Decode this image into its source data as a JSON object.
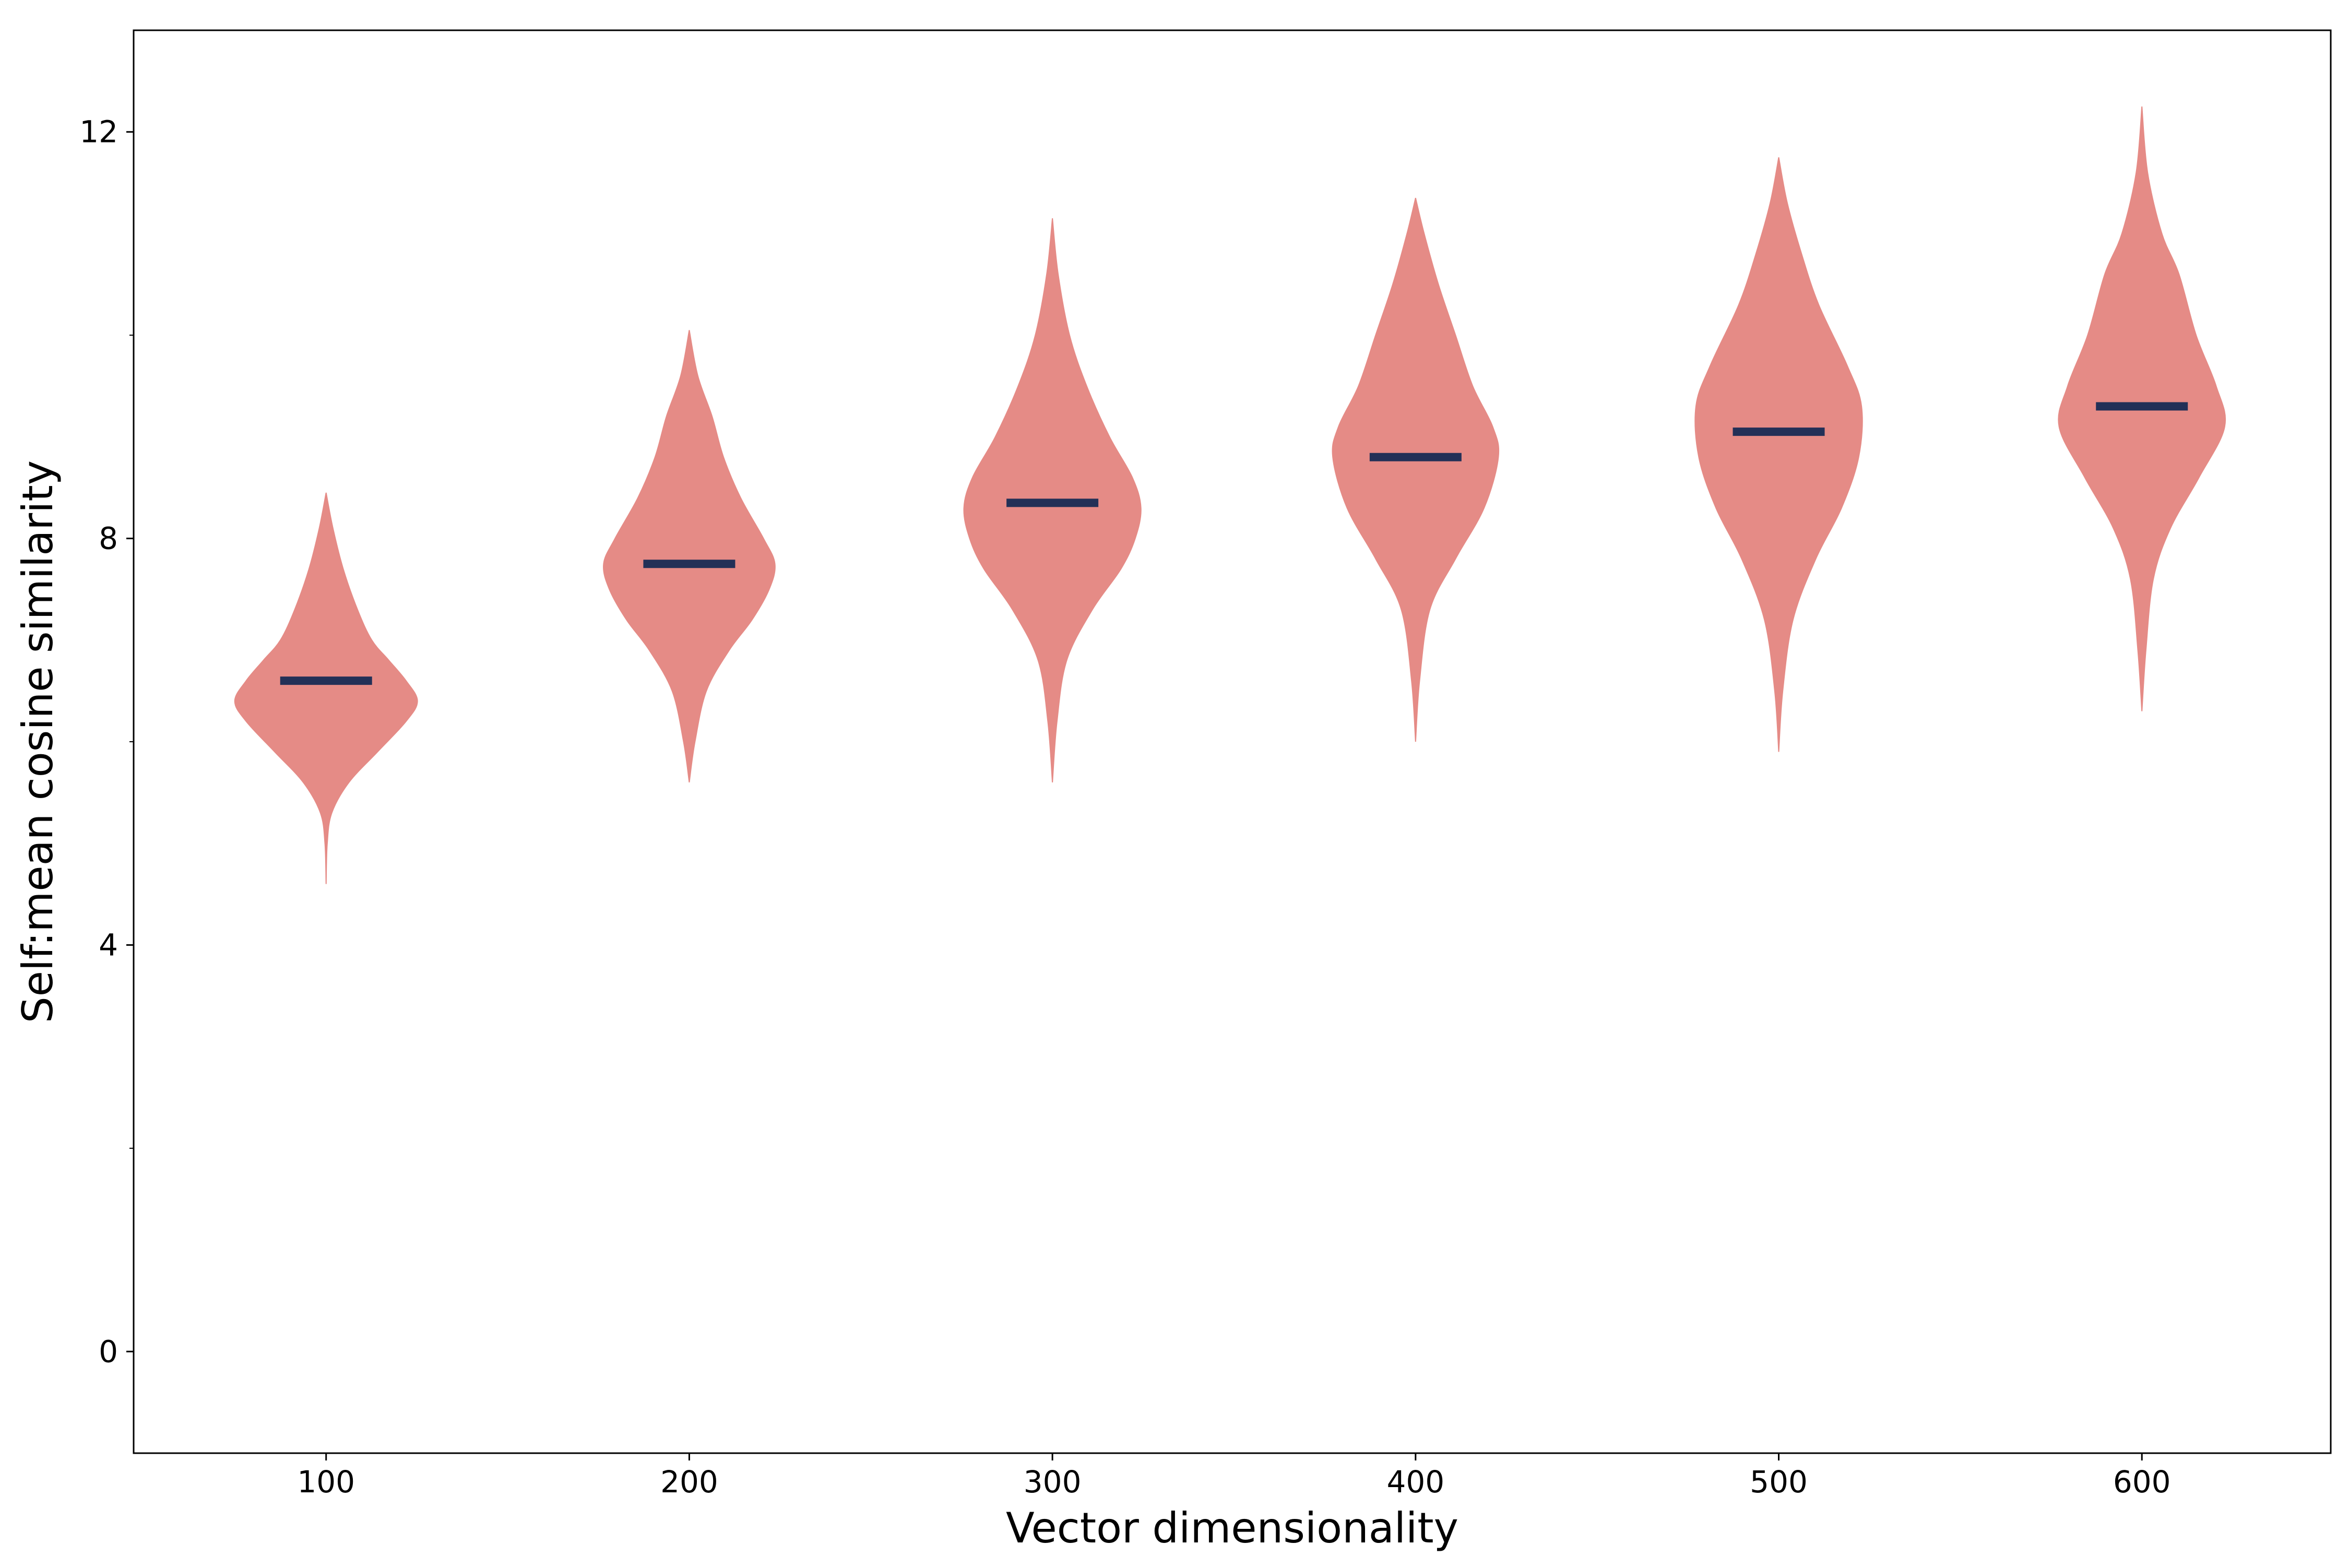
{
  "chart_data": {
    "type": "violin",
    "xlabel": "Vector dimensionality",
    "ylabel": "Self:mean cosine similarity",
    "x_ticks": [
      100,
      200,
      300,
      400,
      500,
      600
    ],
    "y_ticks": [
      0,
      4,
      8,
      12
    ],
    "y_minor_ticks": [
      2,
      6,
      10
    ],
    "xlim": [
      47,
      652
    ],
    "ylim": [
      -1,
      13
    ],
    "grid": false,
    "violin_color": "#e58b86",
    "median_color": "#233057",
    "series": [
      {
        "x": 100,
        "median": 6.6,
        "profile": [
          [
            4.6,
            0
          ],
          [
            5.0,
            0.2
          ],
          [
            5.3,
            1.0
          ],
          [
            5.6,
            4
          ],
          [
            5.9,
            9
          ],
          [
            6.2,
            14
          ],
          [
            6.4,
            16
          ],
          [
            6.6,
            14
          ],
          [
            6.8,
            11
          ],
          [
            7.0,
            8
          ],
          [
            7.3,
            5.5
          ],
          [
            7.7,
            3
          ],
          [
            8.1,
            1.2
          ],
          [
            8.45,
            0
          ]
        ]
      },
      {
        "x": 200,
        "median": 7.75,
        "profile": [
          [
            5.6,
            0
          ],
          [
            6.0,
            1.0
          ],
          [
            6.5,
            3
          ],
          [
            6.9,
            7
          ],
          [
            7.2,
            11
          ],
          [
            7.5,
            14
          ],
          [
            7.75,
            15
          ],
          [
            8.0,
            13
          ],
          [
            8.4,
            9
          ],
          [
            8.8,
            6
          ],
          [
            9.2,
            4
          ],
          [
            9.6,
            1.5
          ],
          [
            10.05,
            0
          ]
        ]
      },
      {
        "x": 300,
        "median": 8.35,
        "profile": [
          [
            5.6,
            0
          ],
          [
            6.2,
            0.8
          ],
          [
            6.8,
            2.5
          ],
          [
            7.3,
            7
          ],
          [
            7.7,
            12
          ],
          [
            8.0,
            14.5
          ],
          [
            8.3,
            15.5
          ],
          [
            8.6,
            14
          ],
          [
            9.0,
            10
          ],
          [
            9.5,
            6
          ],
          [
            10.0,
            3
          ],
          [
            10.6,
            1
          ],
          [
            11.15,
            0
          ]
        ]
      },
      {
        "x": 400,
        "median": 8.8,
        "profile": [
          [
            6.0,
            0
          ],
          [
            6.6,
            0.7
          ],
          [
            7.3,
            2.5
          ],
          [
            7.8,
            7
          ],
          [
            8.3,
            12
          ],
          [
            8.8,
            14.5
          ],
          [
            9.1,
            13.5
          ],
          [
            9.5,
            10
          ],
          [
            10.0,
            7
          ],
          [
            10.5,
            4
          ],
          [
            11.0,
            1.5
          ],
          [
            11.35,
            0
          ]
        ]
      },
      {
        "x": 500,
        "median": 9.05,
        "profile": [
          [
            5.9,
            0
          ],
          [
            6.5,
            0.7
          ],
          [
            7.2,
            2.5
          ],
          [
            7.8,
            6.5
          ],
          [
            8.3,
            11
          ],
          [
            8.8,
            14
          ],
          [
            9.3,
            14.5
          ],
          [
            9.7,
            12
          ],
          [
            10.3,
            7
          ],
          [
            10.8,
            4
          ],
          [
            11.3,
            1.5
          ],
          [
            11.75,
            0
          ]
        ]
      },
      {
        "x": 600,
        "median": 9.3,
        "profile": [
          [
            6.3,
            0
          ],
          [
            6.9,
            0.7
          ],
          [
            7.6,
            2
          ],
          [
            8.1,
            5
          ],
          [
            8.6,
            10
          ],
          [
            9.1,
            14.5
          ],
          [
            9.5,
            13
          ],
          [
            10.0,
            9.5
          ],
          [
            10.6,
            6.5
          ],
          [
            11.0,
            3.5
          ],
          [
            11.6,
            1
          ],
          [
            12.25,
            0
          ]
        ]
      }
    ]
  }
}
